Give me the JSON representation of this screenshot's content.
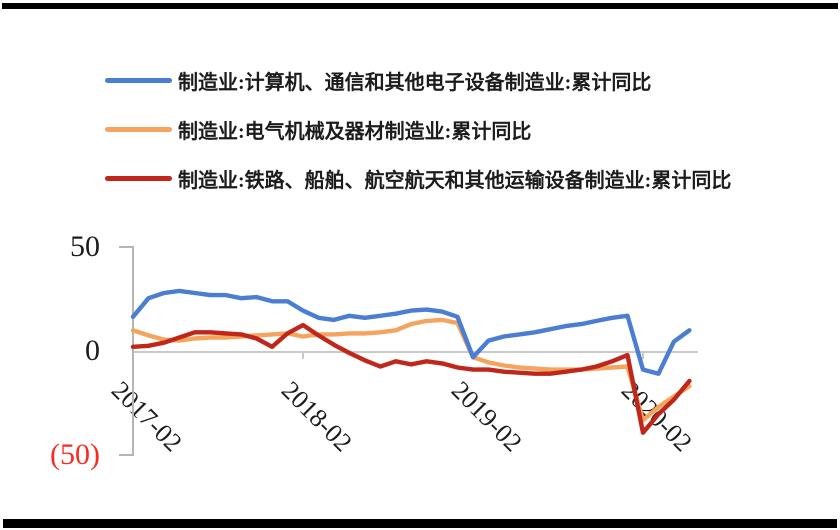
{
  "colors": {
    "series_blue": "#4a7ed2",
    "series_orange": "#f4a45f",
    "series_red": "#c1261b",
    "zero_gridline": "#c9c9c9",
    "axis_line": "#b5b5b5",
    "text": "#1c1c1c",
    "negative_tick_label": "#fb2a21",
    "frame_bars": "#000000"
  },
  "chart_data": {
    "type": "line",
    "title": "",
    "xlabel": "",
    "ylabel": "",
    "ylim": [
      -50,
      50
    ],
    "grid": "zero line only",
    "legend_position": "top-left",
    "x": [
      "2017-02",
      "2017-03",
      "2017-04",
      "2017-05",
      "2017-06",
      "2017-07",
      "2017-08",
      "2017-09",
      "2017-10",
      "2017-11",
      "2017-12",
      "2018-02",
      "2018-03",
      "2018-04",
      "2018-05",
      "2018-06",
      "2018-07",
      "2018-08",
      "2018-09",
      "2018-10",
      "2018-11",
      "2018-12",
      "2019-02",
      "2019-03",
      "2019-04",
      "2019-05",
      "2019-06",
      "2019-07",
      "2019-08",
      "2019-09",
      "2019-10",
      "2019-11",
      "2019-12",
      "2020-02",
      "2020-03",
      "2020-04",
      "2020-05"
    ],
    "x_tick_indices": [
      0,
      11,
      22,
      33
    ],
    "x_tick_labels": [
      "2017-02",
      "2018-02",
      "2019-02",
      "2020-02"
    ],
    "y_ticks": [
      {
        "value": 50,
        "label": "50"
      },
      {
        "value": 0,
        "label": "0"
      },
      {
        "value": -50,
        "label": "(50)"
      }
    ],
    "series": [
      {
        "key": "computer-electronics",
        "name": "制造业:计算机、通信和其他电子设备制造业:累计同比",
        "color": "#4a7ed2",
        "values": [
          17,
          26,
          28.5,
          29.5,
          28.5,
          27.5,
          27.5,
          26,
          26.5,
          24.5,
          24.5,
          20,
          16.5,
          15.5,
          17.5,
          16.5,
          17.5,
          18.5,
          20,
          20.5,
          19.5,
          17,
          -2.5,
          5.5,
          7.5,
          8.5,
          9.5,
          11,
          12.5,
          13.5,
          15,
          16.5,
          17.5,
          -8.5,
          -10.5,
          5,
          10.5
        ]
      },
      {
        "key": "electrical-machinery",
        "name": "制造业:电气机械及器材制造业:累计同比",
        "color": "#f4a45f",
        "values": [
          10.5,
          8,
          6,
          5.5,
          6.5,
          7,
          7,
          7.5,
          8,
          8.5,
          9,
          7.5,
          8.5,
          8.5,
          9,
          9,
          9.5,
          10.5,
          13.5,
          15,
          15.5,
          14,
          -2.5,
          -5,
          -6.5,
          -7.5,
          -8,
          -8.5,
          -8.5,
          -8.5,
          -8,
          -7.5,
          -7,
          -33,
          -26.5,
          -21.5,
          -16.5
        ]
      },
      {
        "key": "transport-equipment",
        "name": "制造业:铁路、船舶、航空航天和其他运输设备制造业:累计同比",
        "color": "#c1261b",
        "values": [
          2.5,
          3,
          4.5,
          7,
          9.5,
          9.5,
          9,
          8.5,
          6.5,
          2.5,
          9,
          13,
          8,
          3.5,
          -0.5,
          -4,
          -7,
          -4.5,
          -6,
          -4.5,
          -5.5,
          -7.5,
          -8.5,
          -8.5,
          -9.5,
          -10,
          -10.5,
          -10.5,
          -9.5,
          -8.5,
          -7,
          -4.5,
          -1.5,
          -39,
          -30,
          -23,
          -14
        ]
      }
    ]
  }
}
